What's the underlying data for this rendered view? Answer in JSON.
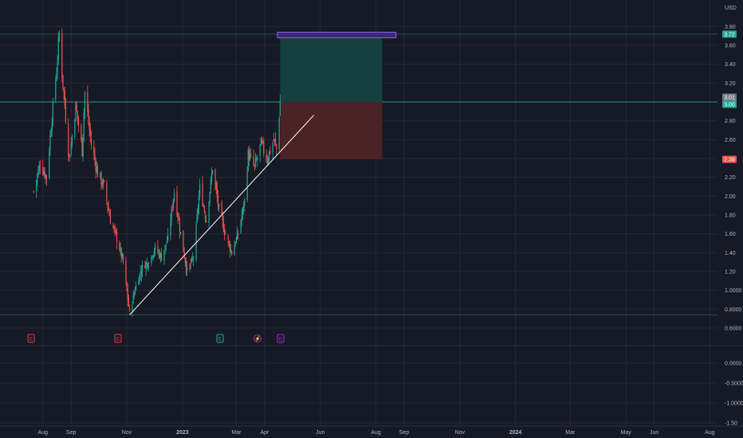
{
  "chart_data": {
    "type": "candlestick",
    "currency": "USD",
    "colors": {
      "background": "#161a25",
      "grid": "#242833",
      "up": "#26a69a",
      "down": "#ef5350",
      "trendline": "#ffffff",
      "profit_zone": "#15403f",
      "loss_zone": "#4b2226",
      "target_box_fill": "#3a2d6b",
      "target_box_border": "#8a5cf6",
      "event_red": "#f23645",
      "event_teal": "#22ab94",
      "event_purple": "#b71ed6"
    },
    "price_axis_labels": [
      "3.80",
      "3.60",
      "3.40",
      "3.20",
      "2.80",
      "2.60",
      "2.20",
      "2.00",
      "1.80",
      "1.60",
      "1.40",
      "1.20",
      "1.0000",
      "0.8000",
      "0.6000"
    ],
    "oscillator_axis_labels": [
      "0.0000",
      "-0.5000",
      "-1.0000",
      "-1.50"
    ],
    "time_axis_labels": [
      "Aug",
      "Sep",
      "Nov",
      "2023",
      "Mar",
      "Apr",
      "Jun",
      "Aug",
      "Sep",
      "Nov",
      "2024",
      "Mar",
      "May",
      "Jun",
      "Aug"
    ],
    "price_badges": [
      {
        "value": "3.72",
        "color": "#26a69a"
      },
      {
        "value": "3.01",
        "color": "#787b86"
      },
      {
        "value": "3.00",
        "color": "#26a69a"
      },
      {
        "value": "2.39",
        "color": "#ef5350"
      }
    ],
    "position": {
      "entry": 3.0,
      "target": 3.7,
      "stop": 2.39,
      "target_box_top": 3.74,
      "target_box_bottom": 3.68
    },
    "trendline": {
      "from": {
        "date": "2022-11-04",
        "price": 0.74
      },
      "to": {
        "date": "2023-05-25",
        "price": 2.86
      }
    },
    "horizontal_lines": [
      0.74,
      3.72,
      3.0
    ],
    "event_markers": [
      {
        "label": "E",
        "color": "red"
      },
      {
        "label": "E",
        "color": "red"
      },
      {
        "label": "E",
        "color": "teal"
      },
      {
        "label": "⚡",
        "color": "purple"
      },
      {
        "label": "E",
        "color": "purple"
      }
    ],
    "close_anchors": [
      [
        "2022-07-22",
        2.05
      ],
      [
        "2022-07-29",
        2.35
      ],
      [
        "2022-08-05",
        2.2
      ],
      [
        "2022-08-12",
        2.95
      ],
      [
        "2022-08-16",
        3.35
      ],
      [
        "2022-08-19",
        3.72
      ],
      [
        "2022-08-23",
        3.2
      ],
      [
        "2022-08-30",
        2.4
      ],
      [
        "2022-09-06",
        2.95
      ],
      [
        "2022-09-13",
        2.5
      ],
      [
        "2022-09-16",
        3.1
      ],
      [
        "2022-09-23",
        2.55
      ],
      [
        "2022-09-30",
        2.25
      ],
      [
        "2022-10-07",
        2.1
      ],
      [
        "2022-10-14",
        1.75
      ],
      [
        "2022-10-21",
        1.55
      ],
      [
        "2022-10-28",
        1.3
      ],
      [
        "2022-11-04",
        0.76
      ],
      [
        "2022-11-11",
        1.05
      ],
      [
        "2022-11-18",
        1.25
      ],
      [
        "2022-11-25",
        1.3
      ],
      [
        "2022-12-02",
        1.45
      ],
      [
        "2022-12-09",
        1.35
      ],
      [
        "2022-12-16",
        1.55
      ],
      [
        "2022-12-23",
        2.05
      ],
      [
        "2022-12-30",
        1.6
      ],
      [
        "2023-01-06",
        1.2
      ],
      [
        "2023-01-13",
        1.35
      ],
      [
        "2023-01-20",
        2.1
      ],
      [
        "2023-01-27",
        1.75
      ],
      [
        "2023-02-03",
        2.3
      ],
      [
        "2023-02-10",
        1.85
      ],
      [
        "2023-02-17",
        1.6
      ],
      [
        "2023-02-24",
        1.4
      ],
      [
        "2023-03-03",
        1.6
      ],
      [
        "2023-03-10",
        1.95
      ],
      [
        "2023-03-14",
        2.45
      ],
      [
        "2023-03-21",
        2.3
      ],
      [
        "2023-03-28",
        2.55
      ],
      [
        "2023-04-04",
        2.4
      ],
      [
        "2023-04-11",
        2.6
      ],
      [
        "2023-04-14",
        2.5
      ],
      [
        "2023-04-18",
        3.0
      ]
    ]
  }
}
